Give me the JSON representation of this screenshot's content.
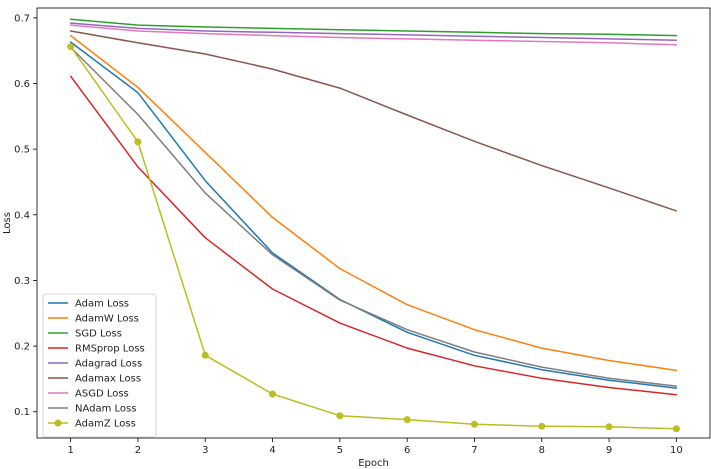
{
  "chart_data": {
    "type": "line",
    "title": "",
    "xlabel": "Epoch",
    "ylabel": "Loss",
    "x": [
      1,
      2,
      3,
      4,
      5,
      6,
      7,
      8,
      9,
      10
    ],
    "xlim": [
      0.5,
      10.5
    ],
    "ylim": [
      0.06,
      0.715
    ],
    "xticks": [
      "1",
      "2",
      "3",
      "4",
      "5",
      "6",
      "7",
      "8",
      "9",
      "10"
    ],
    "yticks": [
      {
        "value": 0.1,
        "label": "0.1"
      },
      {
        "value": 0.2,
        "label": "0.2"
      },
      {
        "value": 0.3,
        "label": "0.3"
      },
      {
        "value": 0.4,
        "label": "0.4"
      },
      {
        "value": 0.5,
        "label": "0.5"
      },
      {
        "value": 0.6,
        "label": "0.6"
      },
      {
        "value": 0.7,
        "label": "0.7"
      }
    ],
    "grid": false,
    "legend_position": "lower-left",
    "series": [
      {
        "name": "Adam Loss",
        "color": "#1f77b4",
        "marker": "none",
        "values": [
          0.663,
          0.586,
          0.452,
          0.342,
          0.271,
          0.221,
          0.186,
          0.164,
          0.148,
          0.136
        ]
      },
      {
        "name": "AdamW Loss",
        "color": "#ff7f0e",
        "marker": "none",
        "values": [
          0.673,
          0.594,
          0.495,
          0.396,
          0.318,
          0.263,
          0.225,
          0.197,
          0.178,
          0.163
        ]
      },
      {
        "name": "SGD Loss",
        "color": "#2ca02c",
        "marker": "none",
        "values": [
          0.698,
          0.689,
          0.686,
          0.684,
          0.682,
          0.68,
          0.678,
          0.676,
          0.675,
          0.673
        ]
      },
      {
        "name": "RMSprop Loss",
        "color": "#d62728",
        "marker": "none",
        "values": [
          0.611,
          0.473,
          0.365,
          0.287,
          0.235,
          0.197,
          0.17,
          0.151,
          0.137,
          0.126
        ]
      },
      {
        "name": "Adagrad Loss",
        "color": "#9467bd",
        "marker": "none",
        "values": [
          0.692,
          0.684,
          0.68,
          0.678,
          0.676,
          0.674,
          0.672,
          0.67,
          0.668,
          0.666
        ]
      },
      {
        "name": "Adamax Loss",
        "color": "#8c564b",
        "marker": "none",
        "values": [
          0.68,
          0.662,
          0.645,
          0.622,
          0.593,
          0.552,
          0.512,
          0.475,
          0.441,
          0.406
        ]
      },
      {
        "name": "ASGD Loss",
        "color": "#e377c2",
        "marker": "none",
        "values": [
          0.689,
          0.68,
          0.676,
          0.673,
          0.67,
          0.668,
          0.666,
          0.664,
          0.662,
          0.659
        ]
      },
      {
        "name": "NAdam Loss",
        "color": "#7f7f7f",
        "marker": "none",
        "values": [
          0.655,
          0.553,
          0.433,
          0.339,
          0.27,
          0.225,
          0.191,
          0.168,
          0.151,
          0.139
        ]
      },
      {
        "name": "AdamZ Loss",
        "color": "#bcbd22",
        "marker": "circle",
        "values": [
          0.656,
          0.511,
          0.186,
          0.127,
          0.094,
          0.088,
          0.081,
          0.078,
          0.077,
          0.074
        ]
      }
    ]
  }
}
